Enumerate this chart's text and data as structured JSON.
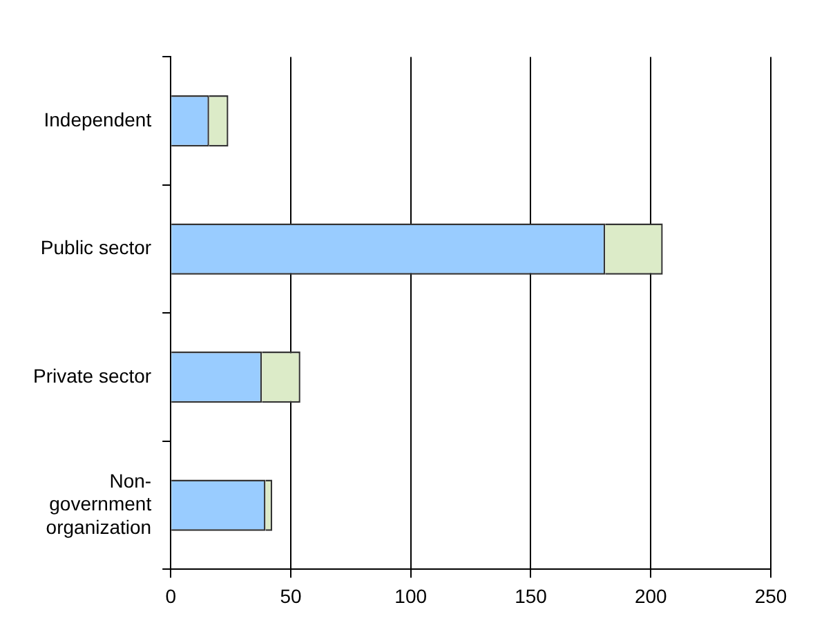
{
  "chart_data": {
    "type": "bar",
    "orientation": "horizontal",
    "stacked": true,
    "categories": [
      "Independent",
      "Public sector",
      "Private sector",
      "Non-government organization"
    ],
    "series": [
      {
        "color": "#99ccff",
        "values": [
          16,
          181,
          38,
          39.5
        ]
      },
      {
        "color": "#dcebc8",
        "values": [
          8,
          24,
          16,
          2.8
        ]
      }
    ],
    "xlim": [
      0,
      250
    ],
    "xticks": [
      0,
      50,
      100,
      150,
      200,
      250
    ],
    "grid": "x",
    "legend": false
  }
}
